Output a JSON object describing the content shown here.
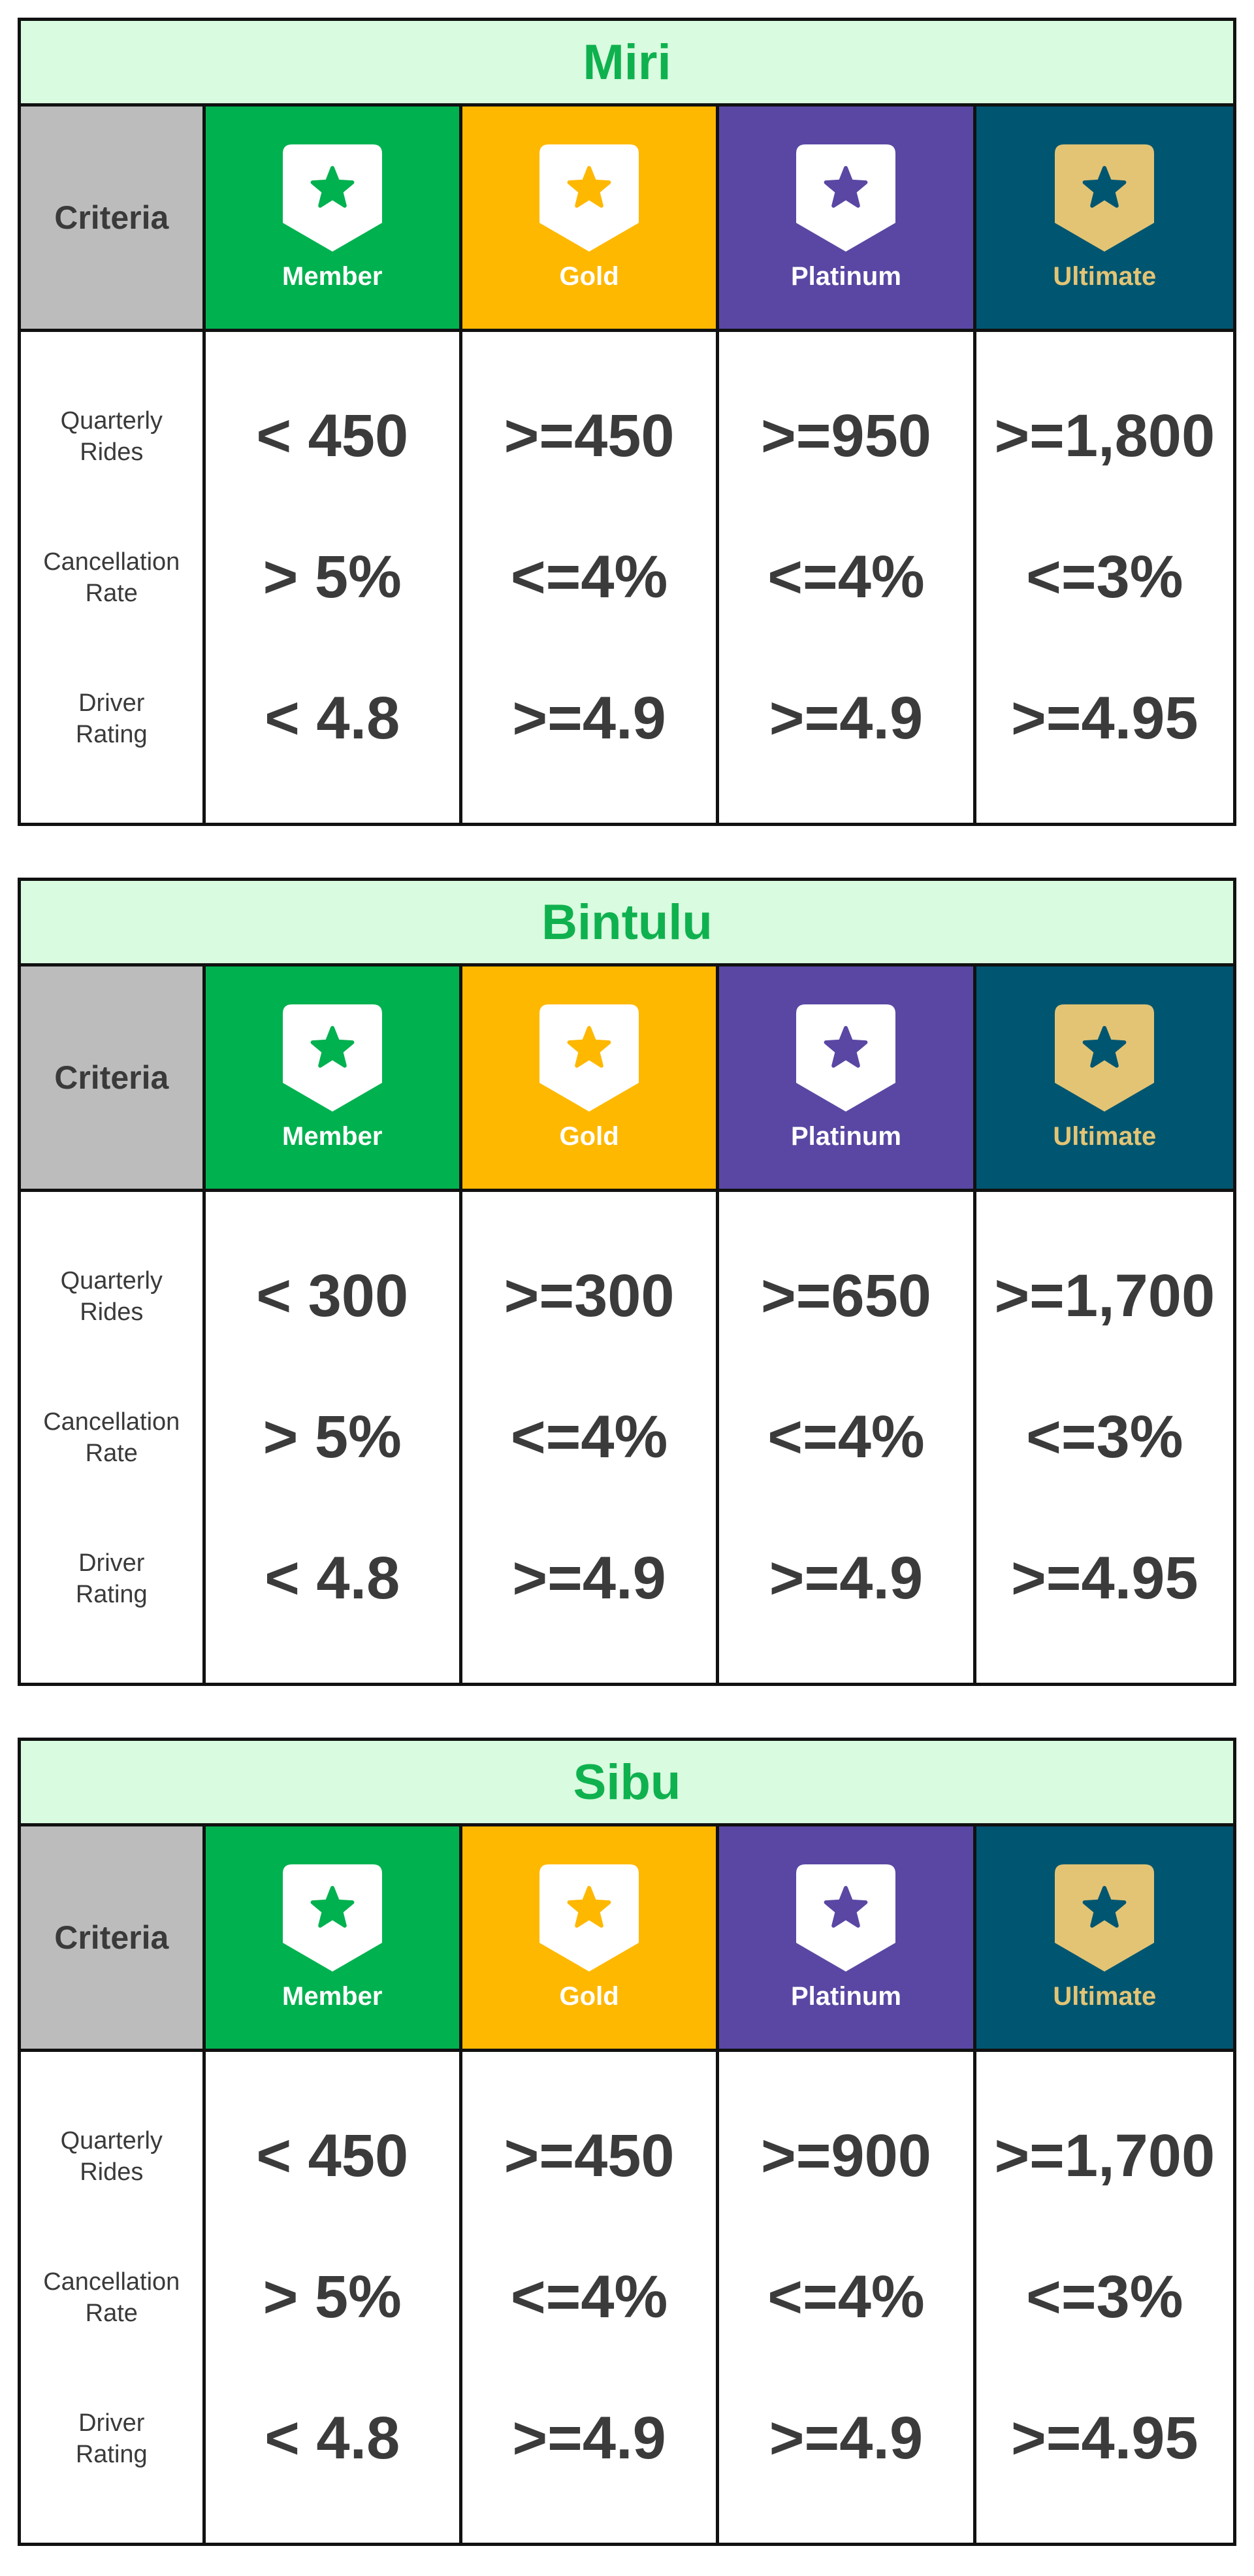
{
  "colors": {
    "title_bg": "#d9fbdf",
    "title_text": "#0fb14e",
    "criteria_bg": "#bcbcbc",
    "member_bg": "#00b14f",
    "gold_bg": "#ffb800",
    "platinum_bg": "#5a47a3",
    "ultimate_bg": "#005670",
    "ultimate_badge": "#e3c475",
    "border": "#111111",
    "value_text": "#3b3b3b"
  },
  "header": {
    "criteria_label": "Criteria",
    "tiers": [
      {
        "label": "Member",
        "bg": "#00b14f",
        "badge_fill": "#ffffff",
        "star_fill": "#00b14f",
        "label_color": "#ffffff",
        "icon": "star-shield-icon"
      },
      {
        "label": "Gold",
        "bg": "#ffb800",
        "badge_fill": "#ffffff",
        "star_fill": "#ffb800",
        "label_color": "#ffffff",
        "icon": "star-shield-icon"
      },
      {
        "label": "Platinum",
        "bg": "#5a47a3",
        "badge_fill": "#ffffff",
        "star_fill": "#5a47a3",
        "label_color": "#ffffff",
        "icon": "star-shield-icon"
      },
      {
        "label": "Ultimate",
        "bg": "#005670",
        "badge_fill": "#e3c475",
        "star_fill": "#005670",
        "label_color": "#e3c475",
        "icon": "star-shield-icon"
      }
    ]
  },
  "criteria": [
    {
      "line1": "Quarterly",
      "line2": "Rides"
    },
    {
      "line1": "Cancellation",
      "line2": "Rate"
    },
    {
      "line1": "Driver",
      "line2": "Rating"
    }
  ],
  "regions": [
    {
      "name": "Miri",
      "rows": [
        [
          "< 450",
          ">=450",
          ">=950",
          ">=1,800"
        ],
        [
          "> 5%",
          "<=4%",
          "<=4%",
          "<=3%"
        ],
        [
          "< 4.8",
          ">=4.9",
          ">=4.9",
          ">=4.95"
        ]
      ]
    },
    {
      "name": "Bintulu",
      "rows": [
        [
          "< 300",
          ">=300",
          ">=650",
          ">=1,700"
        ],
        [
          "> 5%",
          "<=4%",
          "<=4%",
          "<=3%"
        ],
        [
          "< 4.8",
          ">=4.9",
          ">=4.9",
          ">=4.95"
        ]
      ]
    },
    {
      "name": "Sibu",
      "rows": [
        [
          "< 450",
          ">=450",
          ">=900",
          ">=1,700"
        ],
        [
          "> 5%",
          "<=4%",
          "<=4%",
          "<=3%"
        ],
        [
          "< 4.8",
          ">=4.9",
          ">=4.9",
          ">=4.95"
        ]
      ]
    }
  ]
}
